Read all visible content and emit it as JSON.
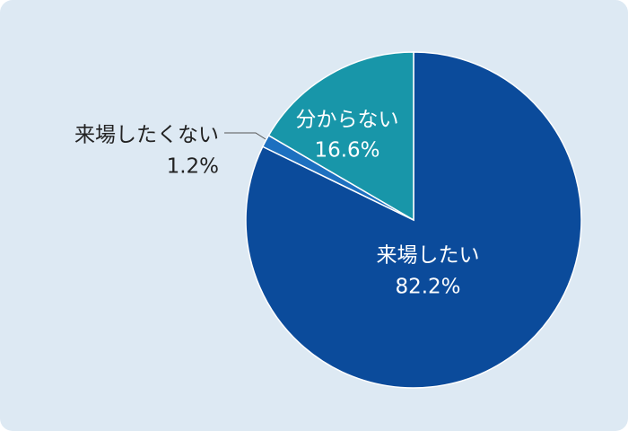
{
  "chart_data": {
    "type": "pie",
    "categories": [
      "来場したい",
      "来場したくない",
      "分からない"
    ],
    "values": [
      82.2,
      1.2,
      16.6
    ],
    "value_labels": [
      "82.2%",
      "1.2%",
      "16.6%"
    ],
    "colors": [
      "#0b4b9b",
      "#1d70c0",
      "#1896a9"
    ]
  }
}
